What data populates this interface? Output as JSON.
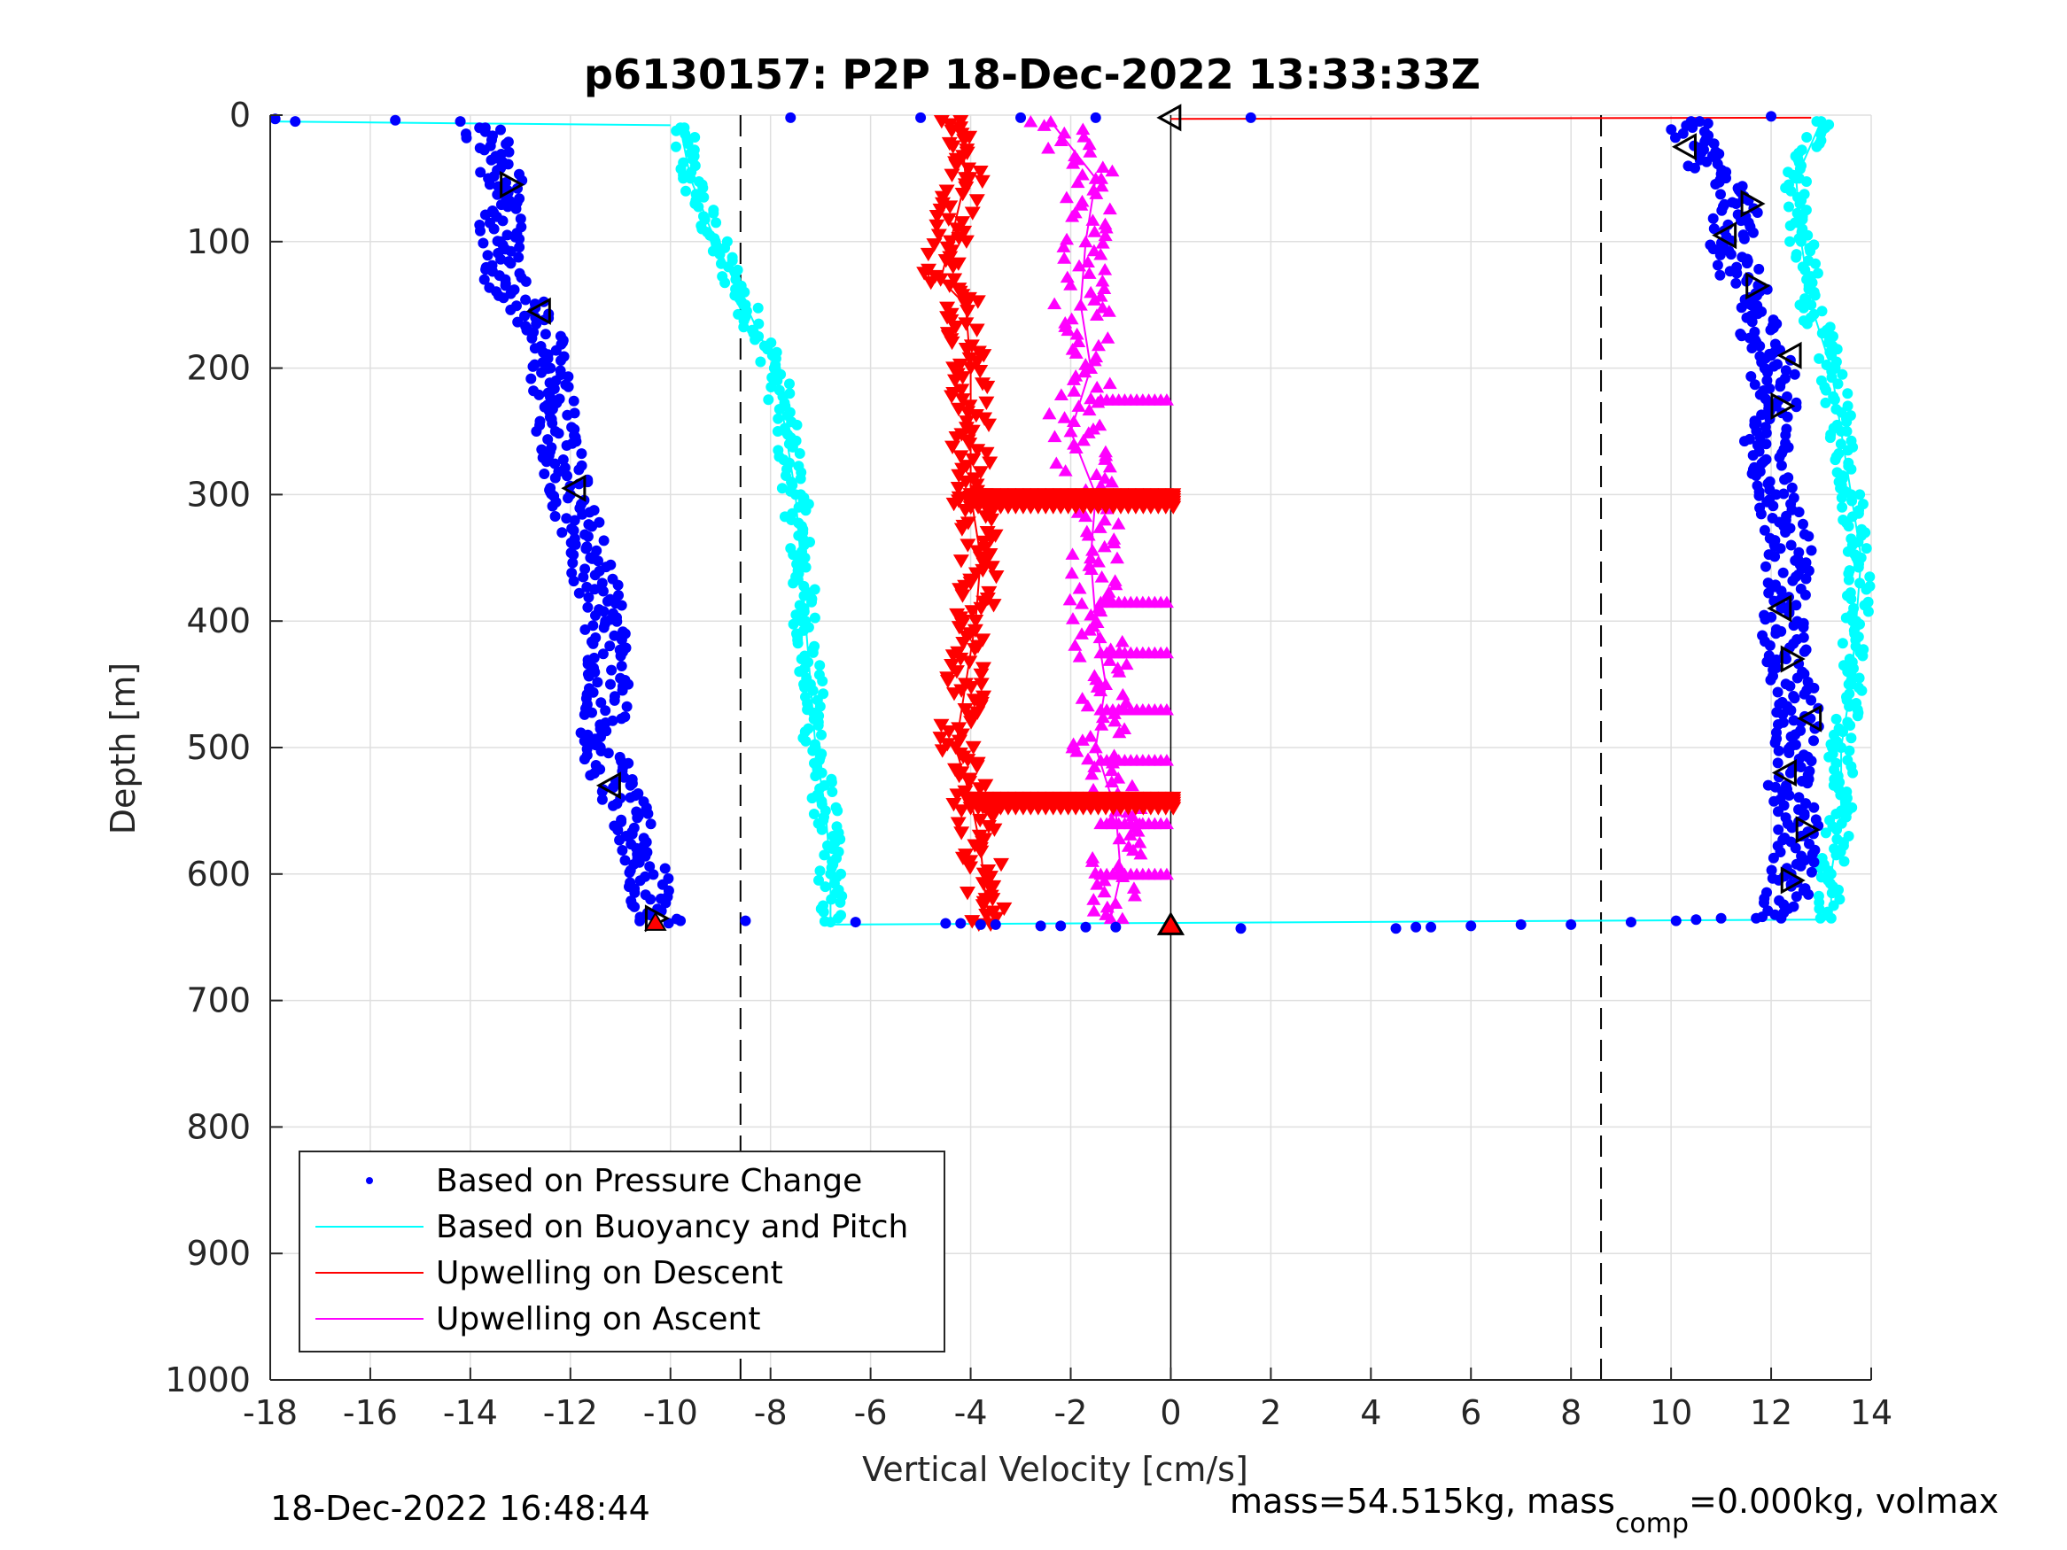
{
  "chart_data": {
    "type": "scatter",
    "title": "p6130157: P2P 18-Dec-2022 13:33:33Z",
    "xlabel": "Vertical Velocity [cm/s]",
    "ylabel": "Depth [m]",
    "xlim": [
      -18,
      14
    ],
    "ylim": [
      0,
      1000
    ],
    "y_reversed": true,
    "grid": true,
    "x_ticks": [
      -18,
      -16,
      -14,
      -12,
      -10,
      -8,
      -6,
      -4,
      -2,
      0,
      2,
      4,
      6,
      8,
      10,
      12,
      14
    ],
    "y_ticks": [
      0,
      100,
      200,
      300,
      400,
      500,
      600,
      700,
      800,
      900,
      1000
    ],
    "x_tick_labels": [
      "-18",
      "-16",
      "-14",
      "-12",
      "-10",
      "-8",
      "-6",
      "-4",
      "-2",
      "0",
      "2",
      "4",
      "6",
      "8",
      "10",
      "12",
      "14"
    ],
    "y_tick_labels": [
      "0",
      "100",
      "200",
      "300",
      "400",
      "500",
      "600",
      "700",
      "800",
      "900",
      "1000"
    ],
    "reference_lines": {
      "dashed_x": [
        -8.6,
        8.6
      ],
      "solid_x": [
        0
      ]
    },
    "legend_position": "bottom-left",
    "legend": [
      {
        "label": "Based on Pressure Change",
        "color": "#0000ff",
        "style": "dot"
      },
      {
        "label": "Based on Buoyancy and Pitch",
        "color": "#00ffff",
        "style": "line"
      },
      {
        "label": "Upwelling on Descent",
        "color": "#ff0000",
        "style": "line"
      },
      {
        "label": "Upwelling on Ascent",
        "color": "#ff00ff",
        "style": "line"
      }
    ],
    "series": [
      {
        "name": "Based on Pressure Change",
        "color": "#0000ff",
        "phase": "descent",
        "depth": [
          10,
          60,
          100,
          130,
          160,
          200,
          250,
          300,
          350,
          400,
          450,
          500,
          540,
          580,
          620,
          640
        ],
        "velocity": [
          -13.7,
          -13.3,
          -13.4,
          -13.3,
          -12.7,
          -12.4,
          -12.3,
          -12.0,
          -11.6,
          -11.3,
          -11.2,
          -11.4,
          -11.0,
          -10.6,
          -10.4,
          -10.3
        ]
      },
      {
        "name": "Based on Pressure Change",
        "color": "#0000ff",
        "phase": "ascent",
        "depth": [
          635,
          600,
          570,
          530,
          480,
          430,
          390,
          340,
          300,
          260,
          230,
          190,
          150,
          110,
          70,
          30,
          5
        ],
        "velocity": [
          12.2,
          12.4,
          12.6,
          12.3,
          12.6,
          12.3,
          12.2,
          12.4,
          12.1,
          11.9,
          12.1,
          12.0,
          11.6,
          11.2,
          11.3,
          10.6,
          10.4
        ]
      },
      {
        "name": "Based on Buoyancy and Pitch",
        "color": "#00ffff",
        "phase": "descent",
        "depth": [
          10,
          50,
          100,
          150,
          200,
          250,
          300,
          350,
          400,
          450,
          500,
          550,
          600,
          638
        ],
        "velocity": [
          -9.8,
          -9.6,
          -9.1,
          -8.5,
          -7.9,
          -7.7,
          -7.5,
          -7.4,
          -7.3,
          -7.2,
          -7.1,
          -6.9,
          -6.8,
          -6.8
        ]
      },
      {
        "name": "Based on Buoyancy and Pitch",
        "color": "#00ffff",
        "phase": "ascent",
        "depth": [
          635,
          600,
          550,
          500,
          450,
          400,
          350,
          300,
          250,
          200,
          150,
          100,
          50,
          5
        ],
        "velocity": [
          13.2,
          13.2,
          13.4,
          13.4,
          13.6,
          13.7,
          13.8,
          13.6,
          13.4,
          13.2,
          12.8,
          12.6,
          12.5,
          13.0
        ]
      },
      {
        "name": "Upwelling on Descent",
        "color": "#ff0000",
        "depth": [
          5,
          50,
          100,
          130,
          150,
          200,
          250,
          300,
          350,
          400,
          450,
          500,
          540,
          580,
          620,
          640
        ],
        "velocity": [
          -4.2,
          -4.1,
          -4.4,
          -4.6,
          -4.1,
          -4.0,
          -4.0,
          -4.0,
          -3.8,
          -3.9,
          -4.1,
          -4.3,
          -4.0,
          -3.8,
          -3.7,
          -3.6
        ]
      },
      {
        "name": "Upwelling on Ascent",
        "color": "#ff00ff",
        "depth": [
          635,
          600,
          550,
          500,
          450,
          400,
          350,
          300,
          250,
          200,
          150,
          100,
          50,
          5
        ],
        "velocity": [
          -1.2,
          -1.0,
          -1.1,
          -1.5,
          -1.3,
          -1.5,
          -1.6,
          -1.5,
          -2.0,
          -1.6,
          -1.8,
          -1.7,
          -1.5,
          -2.4
        ]
      }
    ],
    "annotations": {
      "footer_left": "18-Dec-2022 16:48:44",
      "footer_right_part1": "mass=54.515kg, mass",
      "footer_right_sub": "comp",
      "footer_right_part2": "=0.000kg, volmax"
    }
  }
}
